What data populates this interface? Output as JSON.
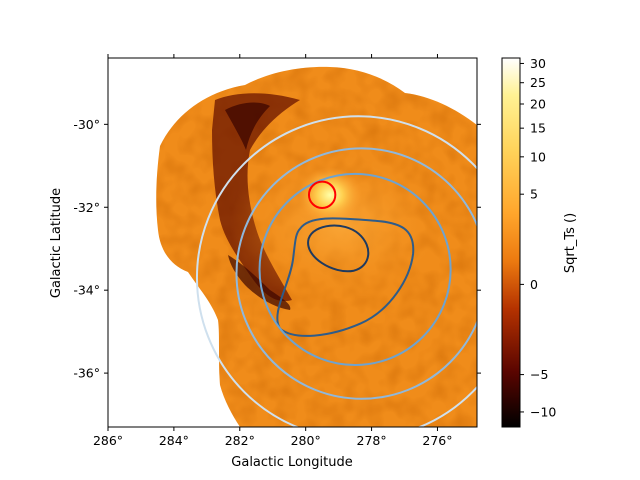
{
  "chart_data": {
    "type": "heatmap",
    "title": "",
    "xlabel": "Galactic Longitude",
    "ylabel": "Galactic Latitude",
    "colorbar_label": "Sqrt_Ts ()",
    "colormap": "afmhot",
    "x_ticks": [
      "286°",
      "284°",
      "282°",
      "280°",
      "278°",
      "276°"
    ],
    "y_ticks": [
      "-30°",
      "-32°",
      "-34°",
      "-36°"
    ],
    "x_tick_values": [
      286,
      284,
      282,
      280,
      278,
      276
    ],
    "y_tick_values": [
      -30,
      -32,
      -34,
      -36
    ],
    "xlim": [
      286.0,
      274.8
    ],
    "ylim": [
      -37.3,
      -28.4
    ],
    "colorbar_ticks": [
      "30",
      "25",
      "20",
      "15",
      "10",
      "5",
      "0",
      "−5",
      "−10"
    ],
    "colorbar_tick_values": [
      30,
      25,
      20,
      15,
      10,
      5,
      0,
      -5,
      -10
    ],
    "colorbar_range": [
      -12.5,
      31.5
    ],
    "colorbar_scale": "sqrt-stretched",
    "peak_marker": {
      "shape": "circle",
      "color": "#ff0000",
      "l": 279.5,
      "b": -31.7,
      "radius_deg": 0.4
    },
    "contours": [
      {
        "color": "#1f3a5f",
        "level": "inner",
        "l": 279.0,
        "b": -33.0
      },
      {
        "color": "#2e5c8a",
        "level": "middle",
        "l": 278.5,
        "b": -33.0
      },
      {
        "color": "#6fa3cf",
        "level": "outer",
        "l": 278.5,
        "b": -33.5,
        "radius_deg": 2.9
      },
      {
        "color": "#8fb8dc",
        "level": "outer-2",
        "l": 278.3,
        "b": -33.6,
        "radius_deg": 3.8
      },
      {
        "color": "#cfe0ee",
        "level": "outer-3",
        "l": 278.4,
        "b": -33.7,
        "radius_deg": 4.9
      }
    ],
    "colors": {
      "background_map": "#f08c1a",
      "dark_arc": "#5a0d00",
      "bright_peak": "#ffffa0"
    }
  }
}
